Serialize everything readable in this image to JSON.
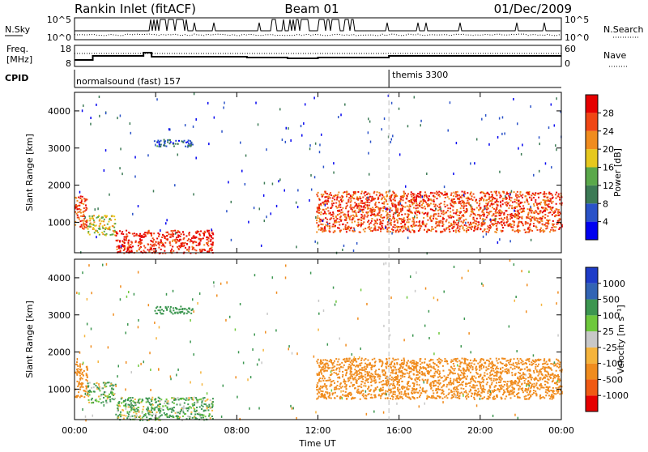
{
  "header": {
    "station": "Rankin Inlet (fitACF)",
    "beam": "Beam 01",
    "date": "01/Dec/2009"
  },
  "noise_panel": {
    "left_label": "N.Sky",
    "right_label": "N.Search",
    "y_ticks_left": [
      "10^5",
      "10^0"
    ],
    "y_ticks_right": [
      "10^5",
      "10^0"
    ]
  },
  "freq_panel": {
    "left_label_1": "Freq.",
    "left_label_2": "[MHz]",
    "right_label": "Nave",
    "y_ticks_left": [
      "18",
      "8"
    ],
    "y_ticks_right": [
      "60",
      "0"
    ]
  },
  "cpid_panel": {
    "label": "CPID",
    "segments": [
      {
        "name": "normalsound (fast) 157",
        "start_hour": 0,
        "end_hour": 15.5
      },
      {
        "name": "themis 3300",
        "start_hour": 15.5,
        "end_hour": 24
      }
    ]
  },
  "x_axis": {
    "label": "Time UT",
    "ticks": [
      "00:00",
      "04:00",
      "08:00",
      "12:00",
      "16:00",
      "20:00",
      "00:00"
    ]
  },
  "power_panel": {
    "ylabel": "Slant Range [km]",
    "y_ticks": [
      "1000",
      "2000",
      "3000",
      "4000"
    ],
    "colorbar_label": "Power [dB]",
    "colorbar_ticks": [
      "28",
      "24",
      "20",
      "16",
      "12",
      "8",
      "4"
    ],
    "colors": [
      "#0000f0",
      "#2a52c8",
      "#3c7a55",
      "#5aa84a",
      "#e6c81e",
      "#f08c1e",
      "#f04614",
      "#e60000"
    ]
  },
  "velocity_panel": {
    "ylabel": "Slant Range [km]",
    "y_ticks": [
      "1000",
      "2000",
      "3000",
      "4000"
    ],
    "colorbar_label": "Velocity [m s⁻¹]",
    "colorbar_ticks": [
      "1000",
      "500",
      "100",
      "25",
      "-25",
      "-100",
      "-500",
      "-1000"
    ],
    "colors": [
      "#e60000",
      "#f05a14",
      "#f08c1e",
      "#f5b43c",
      "#c8c8c8",
      "#6ec83c",
      "#3c9650",
      "#3264b4",
      "#1e3cc8"
    ]
  },
  "chart_data": {
    "type": "heatmap",
    "title": "Rankin Inlet (fitACF)",
    "xlabel": "Time UT",
    "ylabel": "Slant Range [km]",
    "x_range_hours": [
      0,
      24
    ],
    "y_range_km": [
      180,
      4500
    ],
    "regions": [
      {
        "start_hour": 0.0,
        "end_hour": 0.6,
        "range_min_km": 800,
        "range_max_km": 1750,
        "power_db": 26,
        "velocity_ms": -300
      },
      {
        "start_hour": 0.6,
        "end_hour": 2.0,
        "range_min_km": 650,
        "range_max_km": 1200,
        "power_db": 18,
        "velocity_ms": 120
      },
      {
        "start_hour": 2.0,
        "end_hour": 6.8,
        "range_min_km": 180,
        "range_max_km": 800,
        "power_db": 28,
        "velocity_ms": 120
      },
      {
        "start_hour": 3.9,
        "end_hour": 5.8,
        "range_min_km": 3050,
        "range_max_km": 3250,
        "power_db": 8,
        "velocity_ms": 300
      },
      {
        "start_hour": 11.9,
        "end_hour": 24.0,
        "range_min_km": 750,
        "range_max_km": 1850,
        "power_db": 26,
        "velocity_ms": -300
      }
    ]
  }
}
